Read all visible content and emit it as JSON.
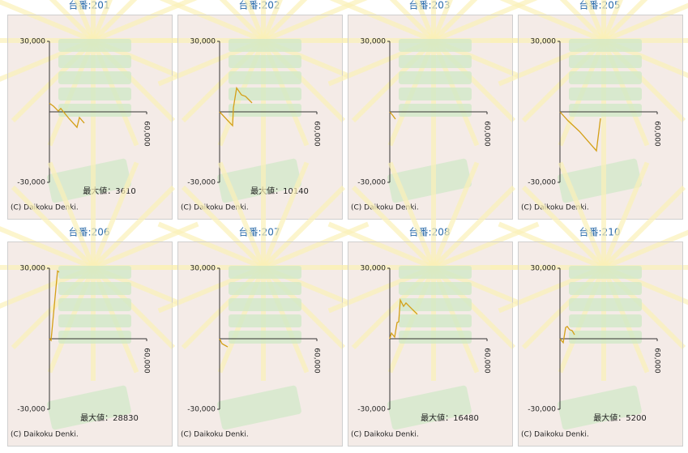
{
  "chart_data": [
    {
      "type": "line",
      "title": "台番:201",
      "x": [
        0,
        2500,
        5500,
        7000,
        9500,
        12000,
        17000,
        18500,
        21500
      ],
      "values": [
        3610,
        2400,
        300,
        1400,
        -700,
        -2800,
        -6600,
        -2400,
        -4800
      ],
      "color": "#d4a017",
      "xlim": [
        0,
        60000
      ],
      "ylim": [
        -30000,
        30000
      ],
      "xticks": [
        {
          "value": 60000,
          "label": "60,000"
        }
      ],
      "yticks": [
        {
          "value": 30000,
          "label": "30,000"
        },
        {
          "value": -30000,
          "label": "-30,000"
        }
      ],
      "annotation": "最大値：3610",
      "copyright": "(C) Daikoku Denki."
    },
    {
      "type": "line",
      "title": "台番:202",
      "x": [
        0,
        8000,
        8500,
        10500,
        13500,
        16000,
        20000
      ],
      "values": [
        0,
        -5900,
        1700,
        10140,
        7200,
        6600,
        3800
      ],
      "color": "#d4a017",
      "xlim": [
        0,
        60000
      ],
      "ylim": [
        -30000,
        30000
      ],
      "xticks": [
        {
          "value": 60000,
          "label": "60,000"
        }
      ],
      "yticks": [
        {
          "value": 30000,
          "label": "30,000"
        },
        {
          "value": -30000,
          "label": "-30,000"
        }
      ],
      "annotation": "最大値：10140",
      "copyright": "(C) Daikoku Denki."
    },
    {
      "type": "line",
      "title": "台番:203",
      "x": [
        0,
        2000,
        3500
      ],
      "values": [
        0,
        -1700,
        -3100
      ],
      "color": "#d4a017",
      "xlim": [
        0,
        60000
      ],
      "ylim": [
        -30000,
        30000
      ],
      "xticks": [
        {
          "value": 60000,
          "label": "60,000"
        }
      ],
      "yticks": [
        {
          "value": 30000,
          "label": "30,000"
        },
        {
          "value": -30000,
          "label": "-30,000"
        }
      ],
      "copyright": "(C) Daikoku Denki."
    },
    {
      "type": "line",
      "title": "台番:205",
      "x": [
        0,
        5000,
        12000,
        22500,
        25000
      ],
      "values": [
        0,
        -3800,
        -8300,
        -16600,
        -2800
      ],
      "color": "#d4a017",
      "xlim": [
        0,
        60000
      ],
      "ylim": [
        -30000,
        30000
      ],
      "xticks": [
        {
          "value": 60000,
          "label": "60,000"
        }
      ],
      "yticks": [
        {
          "value": 30000,
          "label": "30,000"
        },
        {
          "value": -30000,
          "label": "-30,000"
        }
      ],
      "copyright": "(C) Daikoku Denki."
    },
    {
      "type": "line",
      "title": "台番:206",
      "x": [
        0,
        1000,
        5000,
        6000
      ],
      "values": [
        0,
        -700,
        28830,
        28300
      ],
      "color": "#d4a017",
      "xlim": [
        0,
        60000
      ],
      "ylim": [
        -30000,
        30000
      ],
      "xticks": [
        {
          "value": 60000,
          "label": "60,000"
        }
      ],
      "yticks": [
        {
          "value": 30000,
          "label": "30,000"
        },
        {
          "value": -30000,
          "label": "-30,000"
        }
      ],
      "annotation": "最大値：28830",
      "copyright": "(C) Daikoku Denki."
    },
    {
      "type": "line",
      "title": "台番:207",
      "x": [
        0,
        1500,
        5000
      ],
      "values": [
        0,
        -2100,
        -3500
      ],
      "color": "#d4a017",
      "xlim": [
        0,
        60000
      ],
      "ylim": [
        -30000,
        30000
      ],
      "xticks": [
        {
          "value": 60000,
          "label": "60,000"
        }
      ],
      "yticks": [
        {
          "value": 30000,
          "label": "30,000"
        },
        {
          "value": -30000,
          "label": "-30,000"
        }
      ],
      "copyright": "(C) Daikoku Denki."
    },
    {
      "type": "line",
      "title": "台番:208",
      "x": [
        0,
        1000,
        3000,
        4500,
        5500,
        6500,
        8500,
        10000,
        13500,
        17000
      ],
      "values": [
        0,
        2400,
        700,
        6900,
        7200,
        16480,
        13800,
        15200,
        12800,
        10400
      ],
      "color": "#d4a017",
      "xlim": [
        0,
        60000
      ],
      "ylim": [
        -30000,
        30000
      ],
      "xticks": [
        {
          "value": 60000,
          "label": "60,000"
        }
      ],
      "yticks": [
        {
          "value": 30000,
          "label": "30,000"
        },
        {
          "value": -30000,
          "label": "-30,000"
        }
      ],
      "annotation": "最大値：16480",
      "copyright": "(C) Daikoku Denki."
    },
    {
      "type": "line",
      "title": "台番:210",
      "x": [
        0,
        2000,
        3500,
        4500,
        6000,
        7500,
        9000
      ],
      "values": [
        0,
        -1700,
        4800,
        5200,
        3800,
        3500,
        1700
      ],
      "color": "#d4a017",
      "xlim": [
        0,
        60000
      ],
      "ylim": [
        -30000,
        30000
      ],
      "xticks": [
        {
          "value": 60000,
          "label": "60,000"
        }
      ],
      "yticks": [
        {
          "value": 30000,
          "label": "30,000"
        },
        {
          "value": -30000,
          "label": "-30,000"
        }
      ],
      "annotation": "最大値：5200",
      "copyright": "(C) Daikoku Denki."
    }
  ]
}
